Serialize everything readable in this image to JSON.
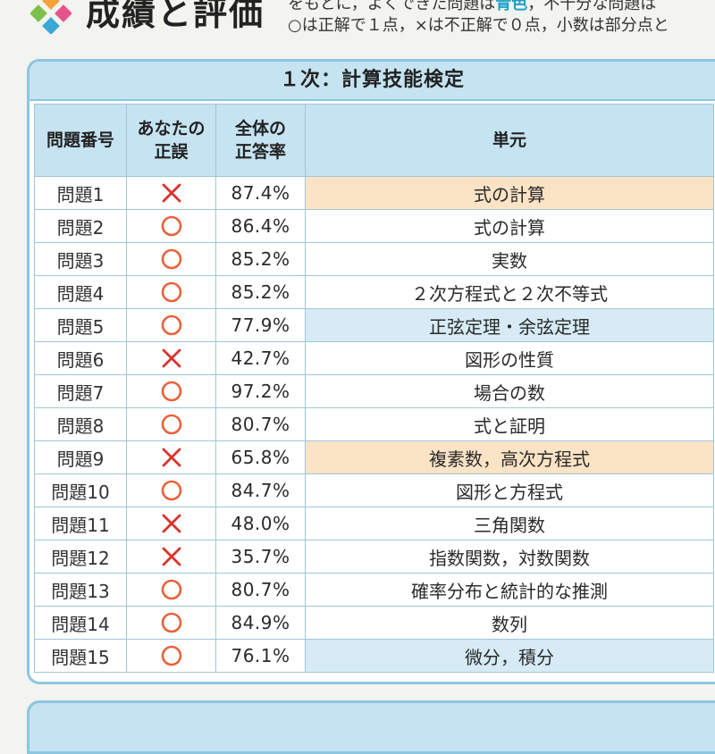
{
  "header": {
    "title": "成績と評価",
    "instruction_line1_pre": "をもとに，よくできた問題は",
    "instruction_line1_hl": "青色",
    "instruction_line1_post": "，不十分な問題は",
    "instruction_line2": "○は正解で１点，×は不正解で０点，小数は部分点と"
  },
  "section": {
    "title": "１次：計算技能検定",
    "columns": {
      "problem": "問題番号",
      "result_line1": "あなたの",
      "result_line2": "正誤",
      "rate_line1": "全体の",
      "rate_line2": "正答率",
      "unit": "単元"
    },
    "rows": [
      {
        "num": "問題1",
        "result": "x",
        "rate": "87.4%",
        "unit": "式の計算",
        "highlight": "orange"
      },
      {
        "num": "問題2",
        "result": "o",
        "rate": "86.4%",
        "unit": "式の計算",
        "highlight": ""
      },
      {
        "num": "問題3",
        "result": "o",
        "rate": "85.2%",
        "unit": "実数",
        "highlight": ""
      },
      {
        "num": "問題4",
        "result": "o",
        "rate": "85.2%",
        "unit": "２次方程式と２次不等式",
        "highlight": ""
      },
      {
        "num": "問題5",
        "result": "o",
        "rate": "77.9%",
        "unit": "正弦定理・余弦定理",
        "highlight": "blue"
      },
      {
        "num": "問題6",
        "result": "x",
        "rate": "42.7%",
        "unit": "図形の性質",
        "highlight": ""
      },
      {
        "num": "問題7",
        "result": "o",
        "rate": "97.2%",
        "unit": "場合の数",
        "highlight": ""
      },
      {
        "num": "問題8",
        "result": "o",
        "rate": "80.7%",
        "unit": "式と証明",
        "highlight": ""
      },
      {
        "num": "問題9",
        "result": "x",
        "rate": "65.8%",
        "unit": "複素数，高次方程式",
        "highlight": "orange"
      },
      {
        "num": "問題10",
        "result": "o",
        "rate": "84.7%",
        "unit": "図形と方程式",
        "highlight": ""
      },
      {
        "num": "問題11",
        "result": "x",
        "rate": "48.0%",
        "unit": "三角関数",
        "highlight": ""
      },
      {
        "num": "問題12",
        "result": "x",
        "rate": "35.7%",
        "unit": "指数関数，対数関数",
        "highlight": ""
      },
      {
        "num": "問題13",
        "result": "o",
        "rate": "80.7%",
        "unit": "確率分布と統計的な推測",
        "highlight": ""
      },
      {
        "num": "問題14",
        "result": "o",
        "rate": "84.9%",
        "unit": "数列",
        "highlight": ""
      },
      {
        "num": "問題15",
        "result": "o",
        "rate": "76.1%",
        "unit": "微分，積分",
        "highlight": "blue"
      }
    ]
  },
  "colors": {
    "correct_mark": "#e8623a",
    "incorrect_mark": "#d8332c",
    "header_bg": "#c5e3f1",
    "border": "#8cc6df",
    "highlight_orange": "#fbe3c5",
    "highlight_blue": "#d6ebf5"
  },
  "icons": {
    "logo": "four-diamond-logo-icon",
    "correct": "circle-mark-icon",
    "incorrect": "cross-mark-icon"
  }
}
